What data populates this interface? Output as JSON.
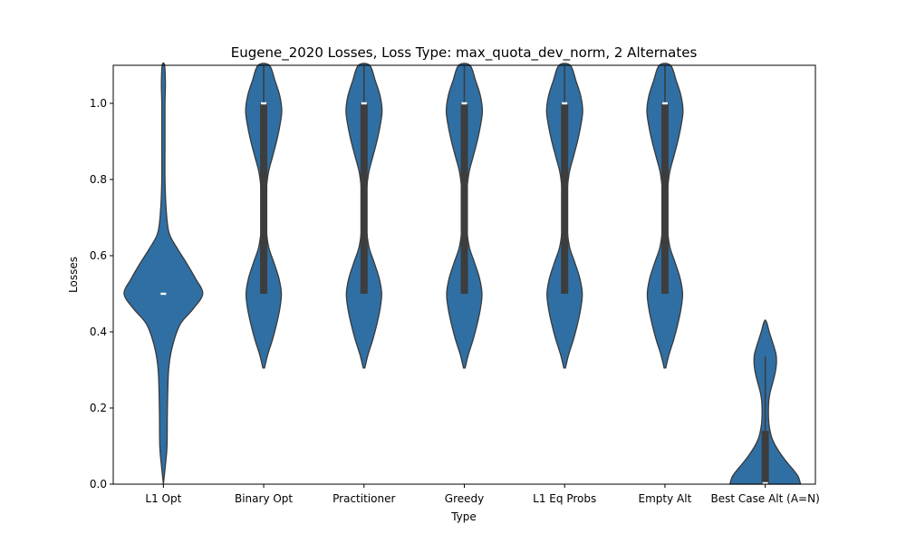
{
  "chart_data": {
    "type": "violin",
    "title": "Eugene_2020 Losses, Loss Type: max_quota_dev_norm, 2 Alternates",
    "xlabel": "Type",
    "ylabel": "Losses",
    "ylim": [
      0.0,
      1.1
    ],
    "yticks": [
      "0.0",
      "0.2",
      "0.4",
      "0.6",
      "0.8",
      "1.0"
    ],
    "grid": false,
    "colors": {
      "violin_fill": "#2f6fa4",
      "violin_edge": "#3a3a3a",
      "box": "#3d3d3d",
      "median": "#ffffff"
    },
    "categories": [
      "L1 Opt",
      "Binary Opt",
      "Practitioner",
      "Greedy",
      "L1 Eq Probs",
      "Empty Alt",
      "Best Case Alt (A=N)"
    ],
    "violins": [
      {
        "category": "L1 Opt",
        "min": 0.0,
        "max": 1.1,
        "q1": 0.5,
        "median": 0.5,
        "q3": 0.5,
        "profile": [
          [
            0.0,
            0.0
          ],
          [
            0.05,
            0.05
          ],
          [
            0.1,
            0.09
          ],
          [
            0.2,
            0.1
          ],
          [
            0.3,
            0.13
          ],
          [
            0.36,
            0.22
          ],
          [
            0.42,
            0.42
          ],
          [
            0.46,
            0.74
          ],
          [
            0.5,
            0.98
          ],
          [
            0.54,
            0.8
          ],
          [
            0.58,
            0.58
          ],
          [
            0.62,
            0.34
          ],
          [
            0.66,
            0.14
          ],
          [
            0.72,
            0.07
          ],
          [
            0.8,
            0.04
          ],
          [
            0.9,
            0.04
          ],
          [
            1.0,
            0.04
          ],
          [
            1.05,
            0.05
          ],
          [
            1.1,
            0.03
          ]
        ]
      },
      {
        "category": "Binary Opt",
        "min": 0.3,
        "max": 1.1,
        "q1": 0.5,
        "median": 1.0,
        "q3": 1.0,
        "profile": [
          [
            0.305,
            0.02
          ],
          [
            0.34,
            0.1
          ],
          [
            0.38,
            0.22
          ],
          [
            0.42,
            0.32
          ],
          [
            0.46,
            0.4
          ],
          [
            0.5,
            0.44
          ],
          [
            0.54,
            0.38
          ],
          [
            0.58,
            0.26
          ],
          [
            0.62,
            0.13
          ],
          [
            0.66,
            0.07
          ],
          [
            0.7,
            0.05
          ],
          [
            0.74,
            0.05
          ],
          [
            0.78,
            0.07
          ],
          [
            0.82,
            0.12
          ],
          [
            0.86,
            0.22
          ],
          [
            0.9,
            0.32
          ],
          [
            0.94,
            0.4
          ],
          [
            0.98,
            0.45
          ],
          [
            1.02,
            0.4
          ],
          [
            1.06,
            0.28
          ],
          [
            1.1,
            0.14
          ]
        ]
      },
      {
        "category": "Practitioner",
        "min": 0.3,
        "max": 1.1,
        "q1": 0.5,
        "median": 1.0,
        "q3": 1.0,
        "profile": [
          [
            0.305,
            0.02
          ],
          [
            0.34,
            0.1
          ],
          [
            0.38,
            0.22
          ],
          [
            0.42,
            0.32
          ],
          [
            0.46,
            0.4
          ],
          [
            0.5,
            0.44
          ],
          [
            0.54,
            0.38
          ],
          [
            0.58,
            0.26
          ],
          [
            0.62,
            0.13
          ],
          [
            0.66,
            0.07
          ],
          [
            0.7,
            0.05
          ],
          [
            0.74,
            0.05
          ],
          [
            0.78,
            0.07
          ],
          [
            0.82,
            0.12
          ],
          [
            0.86,
            0.22
          ],
          [
            0.9,
            0.32
          ],
          [
            0.94,
            0.4
          ],
          [
            0.98,
            0.45
          ],
          [
            1.02,
            0.4
          ],
          [
            1.06,
            0.28
          ],
          [
            1.1,
            0.14
          ]
        ]
      },
      {
        "category": "Greedy",
        "min": 0.3,
        "max": 1.1,
        "q1": 0.5,
        "median": 1.0,
        "q3": 1.0,
        "profile": [
          [
            0.305,
            0.02
          ],
          [
            0.34,
            0.1
          ],
          [
            0.38,
            0.22
          ],
          [
            0.42,
            0.32
          ],
          [
            0.46,
            0.4
          ],
          [
            0.5,
            0.44
          ],
          [
            0.54,
            0.38
          ],
          [
            0.58,
            0.26
          ],
          [
            0.62,
            0.13
          ],
          [
            0.66,
            0.07
          ],
          [
            0.7,
            0.05
          ],
          [
            0.74,
            0.05
          ],
          [
            0.78,
            0.07
          ],
          [
            0.82,
            0.12
          ],
          [
            0.86,
            0.22
          ],
          [
            0.9,
            0.32
          ],
          [
            0.94,
            0.4
          ],
          [
            0.98,
            0.45
          ],
          [
            1.02,
            0.4
          ],
          [
            1.06,
            0.28
          ],
          [
            1.1,
            0.14
          ]
        ]
      },
      {
        "category": "L1 Eq Probs",
        "min": 0.3,
        "max": 1.1,
        "q1": 0.5,
        "median": 1.0,
        "q3": 1.0,
        "profile": [
          [
            0.305,
            0.02
          ],
          [
            0.34,
            0.1
          ],
          [
            0.38,
            0.22
          ],
          [
            0.42,
            0.32
          ],
          [
            0.46,
            0.4
          ],
          [
            0.5,
            0.44
          ],
          [
            0.54,
            0.38
          ],
          [
            0.58,
            0.26
          ],
          [
            0.62,
            0.13
          ],
          [
            0.66,
            0.07
          ],
          [
            0.7,
            0.05
          ],
          [
            0.74,
            0.05
          ],
          [
            0.78,
            0.07
          ],
          [
            0.82,
            0.12
          ],
          [
            0.86,
            0.22
          ],
          [
            0.9,
            0.32
          ],
          [
            0.94,
            0.4
          ],
          [
            0.98,
            0.45
          ],
          [
            1.02,
            0.4
          ],
          [
            1.06,
            0.28
          ],
          [
            1.1,
            0.14
          ]
        ]
      },
      {
        "category": "Empty Alt",
        "min": 0.31,
        "max": 1.1,
        "q1": 0.5,
        "median": 1.0,
        "q3": 1.0,
        "profile": [
          [
            0.305,
            0.02
          ],
          [
            0.34,
            0.1
          ],
          [
            0.38,
            0.22
          ],
          [
            0.42,
            0.32
          ],
          [
            0.46,
            0.4
          ],
          [
            0.5,
            0.44
          ],
          [
            0.54,
            0.38
          ],
          [
            0.58,
            0.26
          ],
          [
            0.62,
            0.13
          ],
          [
            0.66,
            0.07
          ],
          [
            0.7,
            0.05
          ],
          [
            0.74,
            0.05
          ],
          [
            0.78,
            0.07
          ],
          [
            0.82,
            0.12
          ],
          [
            0.86,
            0.22
          ],
          [
            0.9,
            0.32
          ],
          [
            0.94,
            0.4
          ],
          [
            0.98,
            0.45
          ],
          [
            1.02,
            0.4
          ],
          [
            1.06,
            0.28
          ],
          [
            1.1,
            0.14
          ]
        ]
      },
      {
        "category": "Best Case Alt (A=N)",
        "min": 0.0,
        "max": 0.43,
        "q1": 0.0,
        "median": 0.0,
        "q3": 0.14,
        "whisker_high": 0.335,
        "profile": [
          [
            0.0,
            0.88
          ],
          [
            0.02,
            0.82
          ],
          [
            0.04,
            0.68
          ],
          [
            0.06,
            0.52
          ],
          [
            0.08,
            0.38
          ],
          [
            0.1,
            0.26
          ],
          [
            0.12,
            0.17
          ],
          [
            0.14,
            0.12
          ],
          [
            0.16,
            0.09
          ],
          [
            0.18,
            0.08
          ],
          [
            0.2,
            0.08
          ],
          [
            0.22,
            0.09
          ],
          [
            0.24,
            0.12
          ],
          [
            0.26,
            0.17
          ],
          [
            0.28,
            0.22
          ],
          [
            0.3,
            0.26
          ],
          [
            0.32,
            0.28
          ],
          [
            0.34,
            0.27
          ],
          [
            0.36,
            0.22
          ],
          [
            0.38,
            0.16
          ],
          [
            0.4,
            0.1
          ],
          [
            0.42,
            0.05
          ],
          [
            0.43,
            0.01
          ]
        ]
      }
    ]
  }
}
